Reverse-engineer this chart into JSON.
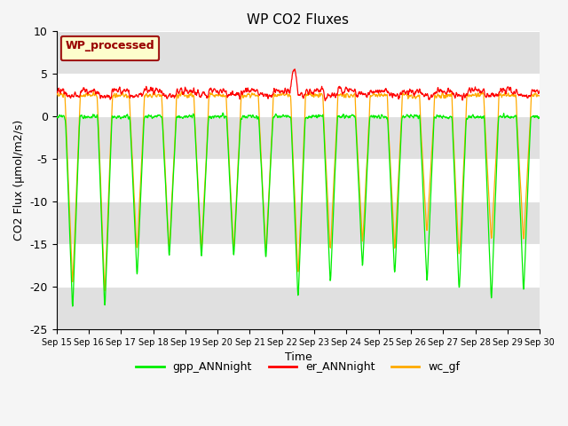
{
  "title": "WP CO2 Fluxes",
  "xlabel": "Time",
  "ylabel": "CO2 Flux (μmol/m2/s)",
  "ylim": [
    -25,
    10
  ],
  "xlim": [
    0,
    15
  ],
  "x_tick_labels": [
    "Sep 15",
    "Sep 16",
    "Sep 17",
    "Sep 18",
    "Sep 19",
    "Sep 20",
    "Sep 21",
    "Sep 22",
    "Sep 23",
    "Sep 24",
    "Sep 25",
    "Sep 26",
    "Sep 27",
    "Sep 28",
    "Sep 29",
    "Sep 30"
  ],
  "gpp_color": "#00ee00",
  "er_color": "#ff0000",
  "wc_color": "#ffaa00",
  "legend_box_label": "WP_processed",
  "legend_box_facecolor": "#ffffcc",
  "legend_box_edgecolor": "#990000",
  "legend_labels": [
    "gpp_ANNnight",
    "er_ANNnight",
    "wc_gf"
  ],
  "fig_facecolor": "#f5f5f5",
  "ax_facecolor": "#ffffff",
  "band_color": "#e0e0e0",
  "n_points_per_day": 96,
  "n_days": 15,
  "yticks": [
    -25,
    -20,
    -15,
    -10,
    -5,
    0,
    5,
    10
  ]
}
